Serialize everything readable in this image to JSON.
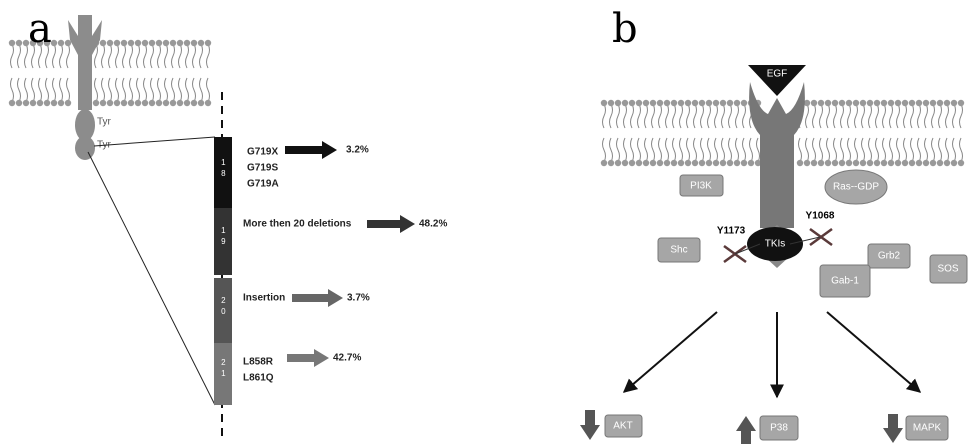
{
  "panel_a": {
    "label": "a",
    "tyr": [
      "Tyr",
      "Tyr"
    ],
    "exons": [
      {
        "number": "18",
        "mutations": [
          "G719X",
          "G719S",
          "G719A"
        ],
        "frequency": "3.2%"
      },
      {
        "number": "19",
        "mutations": [
          "More then 20 deletions"
        ],
        "frequency": "48.2%"
      },
      {
        "number": "20",
        "mutations": [
          "Insertion"
        ],
        "frequency": "3.7%"
      },
      {
        "number": "21",
        "mutations": [
          "L858R",
          "L861Q"
        ],
        "frequency": "42.7%"
      }
    ]
  },
  "panel_b": {
    "label": "b",
    "ligand": "EGF",
    "inhibitor": "TKIs",
    "phosphosites": [
      "Y1173",
      "Y1068"
    ],
    "proteins": [
      "PI3K",
      "Ras--GDP",
      "Grb2",
      "Shc",
      "Gab-1",
      "SOS"
    ],
    "outputs": [
      "AKT",
      "P38",
      "MAPK"
    ]
  }
}
